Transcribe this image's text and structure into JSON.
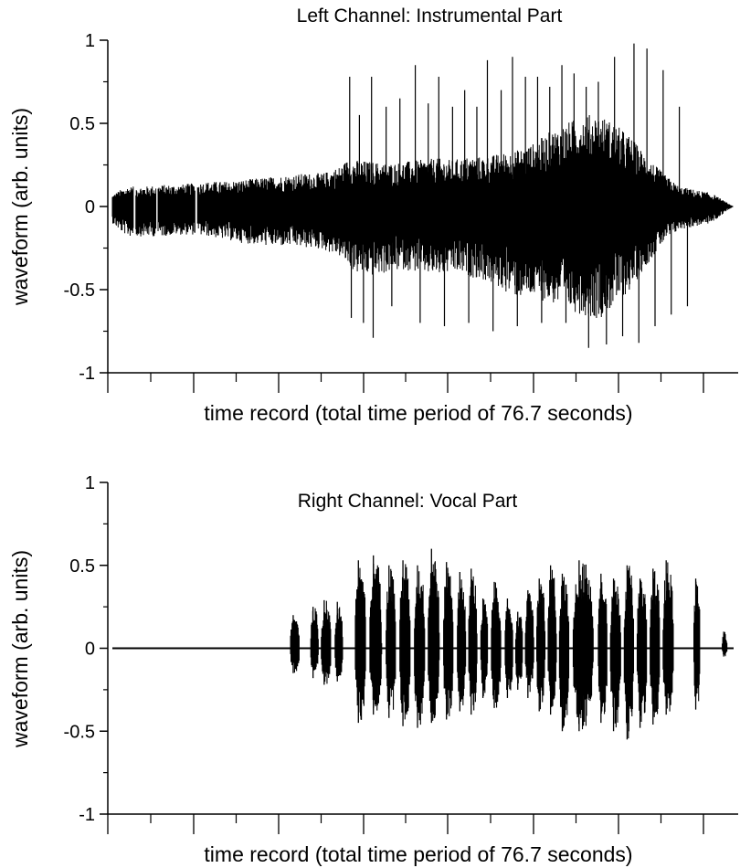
{
  "chart_data": [
    {
      "type": "line",
      "title": "Left Channel: Instrumental Part",
      "xlabel": "time record (total time period of 76.7 seconds)",
      "ylabel": "waveform (arb. units)",
      "ylim": [
        -1,
        1
      ],
      "xlim": [
        0,
        76.7
      ],
      "yticks": [
        1,
        0.5,
        0,
        -0.5,
        -1
      ],
      "ytick_labels": [
        "1",
        "0.5",
        "0",
        "-0.5",
        "-1"
      ],
      "grid": false,
      "series_color": "#000000",
      "envelope": {
        "x": [
          0,
          1,
          2,
          4,
          6,
          8,
          10,
          12,
          14,
          16,
          18,
          20,
          22,
          24,
          26,
          28,
          29,
          30,
          32,
          34,
          36,
          38,
          40,
          42,
          44,
          46,
          48,
          50,
          52,
          54,
          56,
          58,
          60,
          62,
          64,
          66,
          68,
          70,
          72,
          74,
          75,
          76,
          76.7
        ],
        "upper": [
          0.07,
          0.1,
          0.12,
          0.12,
          0.13,
          0.13,
          0.14,
          0.15,
          0.15,
          0.16,
          0.17,
          0.18,
          0.19,
          0.2,
          0.2,
          0.24,
          0.28,
          0.28,
          0.27,
          0.26,
          0.27,
          0.28,
          0.29,
          0.28,
          0.3,
          0.3,
          0.32,
          0.34,
          0.38,
          0.45,
          0.5,
          0.55,
          0.56,
          0.5,
          0.42,
          0.3,
          0.2,
          0.12,
          0.1,
          0.08,
          0.05,
          0.02,
          0.0
        ],
        "lower": [
          -0.1,
          -0.15,
          -0.18,
          -0.18,
          -0.18,
          -0.17,
          -0.17,
          -0.18,
          -0.2,
          -0.22,
          -0.23,
          -0.24,
          -0.24,
          -0.25,
          -0.26,
          -0.3,
          -0.35,
          -0.4,
          -0.42,
          -0.4,
          -0.38,
          -0.4,
          -0.42,
          -0.4,
          -0.42,
          -0.45,
          -0.5,
          -0.55,
          -0.55,
          -0.58,
          -0.62,
          -0.65,
          -0.68,
          -0.6,
          -0.5,
          -0.35,
          -0.22,
          -0.14,
          -0.12,
          -0.1,
          -0.06,
          -0.02,
          0.0
        ]
      },
      "peaks": [
        {
          "x": 29.3,
          "y": 0.78
        },
        {
          "x": 29.5,
          "y": -0.67
        },
        {
          "x": 30.5,
          "y": 0.55
        },
        {
          "x": 31.0,
          "y": -0.7
        },
        {
          "x": 32.0,
          "y": 0.78
        },
        {
          "x": 32.2,
          "y": -0.79
        },
        {
          "x": 33.8,
          "y": 0.6
        },
        {
          "x": 34.5,
          "y": -0.6
        },
        {
          "x": 35.5,
          "y": 0.65
        },
        {
          "x": 37.4,
          "y": 0.85
        },
        {
          "x": 38.0,
          "y": -0.7
        },
        {
          "x": 39.0,
          "y": 0.62
        },
        {
          "x": 40.3,
          "y": 0.78
        },
        {
          "x": 41.0,
          "y": -0.72
        },
        {
          "x": 42.0,
          "y": 0.6
        },
        {
          "x": 43.5,
          "y": 0.7
        },
        {
          "x": 44.0,
          "y": -0.7
        },
        {
          "x": 45.0,
          "y": 0.6
        },
        {
          "x": 46.3,
          "y": 0.88
        },
        {
          "x": 47.0,
          "y": -0.75
        },
        {
          "x": 48.0,
          "y": 0.7
        },
        {
          "x": 49.4,
          "y": 0.9
        },
        {
          "x": 50.0,
          "y": -0.72
        },
        {
          "x": 51.0,
          "y": 0.78
        },
        {
          "x": 52.5,
          "y": 0.78
        },
        {
          "x": 53.0,
          "y": -0.7
        },
        {
          "x": 54.0,
          "y": 0.72
        },
        {
          "x": 55.5,
          "y": 0.85
        },
        {
          "x": 56.0,
          "y": -0.7
        },
        {
          "x": 57.0,
          "y": 0.8
        },
        {
          "x": 58.5,
          "y": 0.72
        },
        {
          "x": 58.8,
          "y": -0.85
        },
        {
          "x": 60.0,
          "y": 0.75
        },
        {
          "x": 61.0,
          "y": -0.83
        },
        {
          "x": 62.0,
          "y": 0.9
        },
        {
          "x": 63.0,
          "y": -0.78
        },
        {
          "x": 64.4,
          "y": 0.98
        },
        {
          "x": 65.0,
          "y": -0.82
        },
        {
          "x": 66.0,
          "y": 0.95
        },
        {
          "x": 67.0,
          "y": -0.72
        },
        {
          "x": 68.0,
          "y": 0.82
        },
        {
          "x": 69.0,
          "y": -0.65
        },
        {
          "x": 70.0,
          "y": 0.6
        },
        {
          "x": 71.0,
          "y": -0.6
        }
      ]
    },
    {
      "type": "line",
      "title": "Right Channel: Vocal Part",
      "xlabel": "time record (total time period of 76.7 seconds)",
      "ylabel": "waveform (arb. units)",
      "ylim": [
        -1,
        1
      ],
      "xlim": [
        0,
        76.7
      ],
      "yticks": [
        1,
        0.5,
        0,
        -0.5,
        -1
      ],
      "ytick_labels": [
        "1",
        "0.5",
        "0",
        "-0.5",
        "-1"
      ],
      "grid": false,
      "series_color": "#000000",
      "segments": [
        {
          "start": 22.0,
          "end": 23.3,
          "top": 0.2,
          "bottom": -0.15
        },
        {
          "start": 24.5,
          "end": 25.6,
          "top": 0.25,
          "bottom": -0.18
        },
        {
          "start": 25.8,
          "end": 27.2,
          "top": 0.29,
          "bottom": -0.22
        },
        {
          "start": 27.5,
          "end": 28.6,
          "top": 0.28,
          "bottom": -0.2
        },
        {
          "start": 30.0,
          "end": 31.5,
          "top": 0.53,
          "bottom": -0.45
        },
        {
          "start": 31.8,
          "end": 33.5,
          "top": 0.56,
          "bottom": -0.4
        },
        {
          "start": 33.8,
          "end": 35.2,
          "top": 0.5,
          "bottom": -0.42
        },
        {
          "start": 35.5,
          "end": 37.0,
          "top": 0.53,
          "bottom": -0.47
        },
        {
          "start": 37.3,
          "end": 38.8,
          "top": 0.5,
          "bottom": -0.48
        },
        {
          "start": 39.0,
          "end": 40.6,
          "top": 0.6,
          "bottom": -0.45
        },
        {
          "start": 40.9,
          "end": 42.3,
          "top": 0.52,
          "bottom": -0.43
        },
        {
          "start": 42.6,
          "end": 43.8,
          "top": 0.46,
          "bottom": -0.38
        },
        {
          "start": 44.0,
          "end": 45.2,
          "top": 0.48,
          "bottom": -0.4
        },
        {
          "start": 45.5,
          "end": 46.5,
          "top": 0.3,
          "bottom": -0.3
        },
        {
          "start": 46.8,
          "end": 48.2,
          "top": 0.4,
          "bottom": -0.36
        },
        {
          "start": 48.5,
          "end": 49.6,
          "top": 0.3,
          "bottom": -0.3
        },
        {
          "start": 49.8,
          "end": 50.8,
          "top": 0.22,
          "bottom": -0.25
        },
        {
          "start": 51.0,
          "end": 52.2,
          "top": 0.35,
          "bottom": -0.3
        },
        {
          "start": 52.4,
          "end": 53.6,
          "top": 0.42,
          "bottom": -0.38
        },
        {
          "start": 53.8,
          "end": 55.0,
          "top": 0.5,
          "bottom": -0.4
        },
        {
          "start": 55.2,
          "end": 56.6,
          "top": 0.45,
          "bottom": -0.5
        },
        {
          "start": 56.9,
          "end": 59.8,
          "top": 0.53,
          "bottom": -0.5
        },
        {
          "start": 60.0,
          "end": 61.3,
          "top": 0.45,
          "bottom": -0.45
        },
        {
          "start": 61.5,
          "end": 63.0,
          "top": 0.42,
          "bottom": -0.5
        },
        {
          "start": 63.2,
          "end": 64.6,
          "top": 0.5,
          "bottom": -0.55
        },
        {
          "start": 64.8,
          "end": 66.2,
          "top": 0.42,
          "bottom": -0.48
        },
        {
          "start": 66.4,
          "end": 67.8,
          "top": 0.48,
          "bottom": -0.46
        },
        {
          "start": 68.0,
          "end": 69.5,
          "top": 0.53,
          "bottom": -0.4
        },
        {
          "start": 71.8,
          "end": 72.7,
          "top": 0.42,
          "bottom": -0.37
        },
        {
          "start": 75.3,
          "end": 76.0,
          "top": 0.1,
          "bottom": -0.05
        }
      ]
    }
  ]
}
